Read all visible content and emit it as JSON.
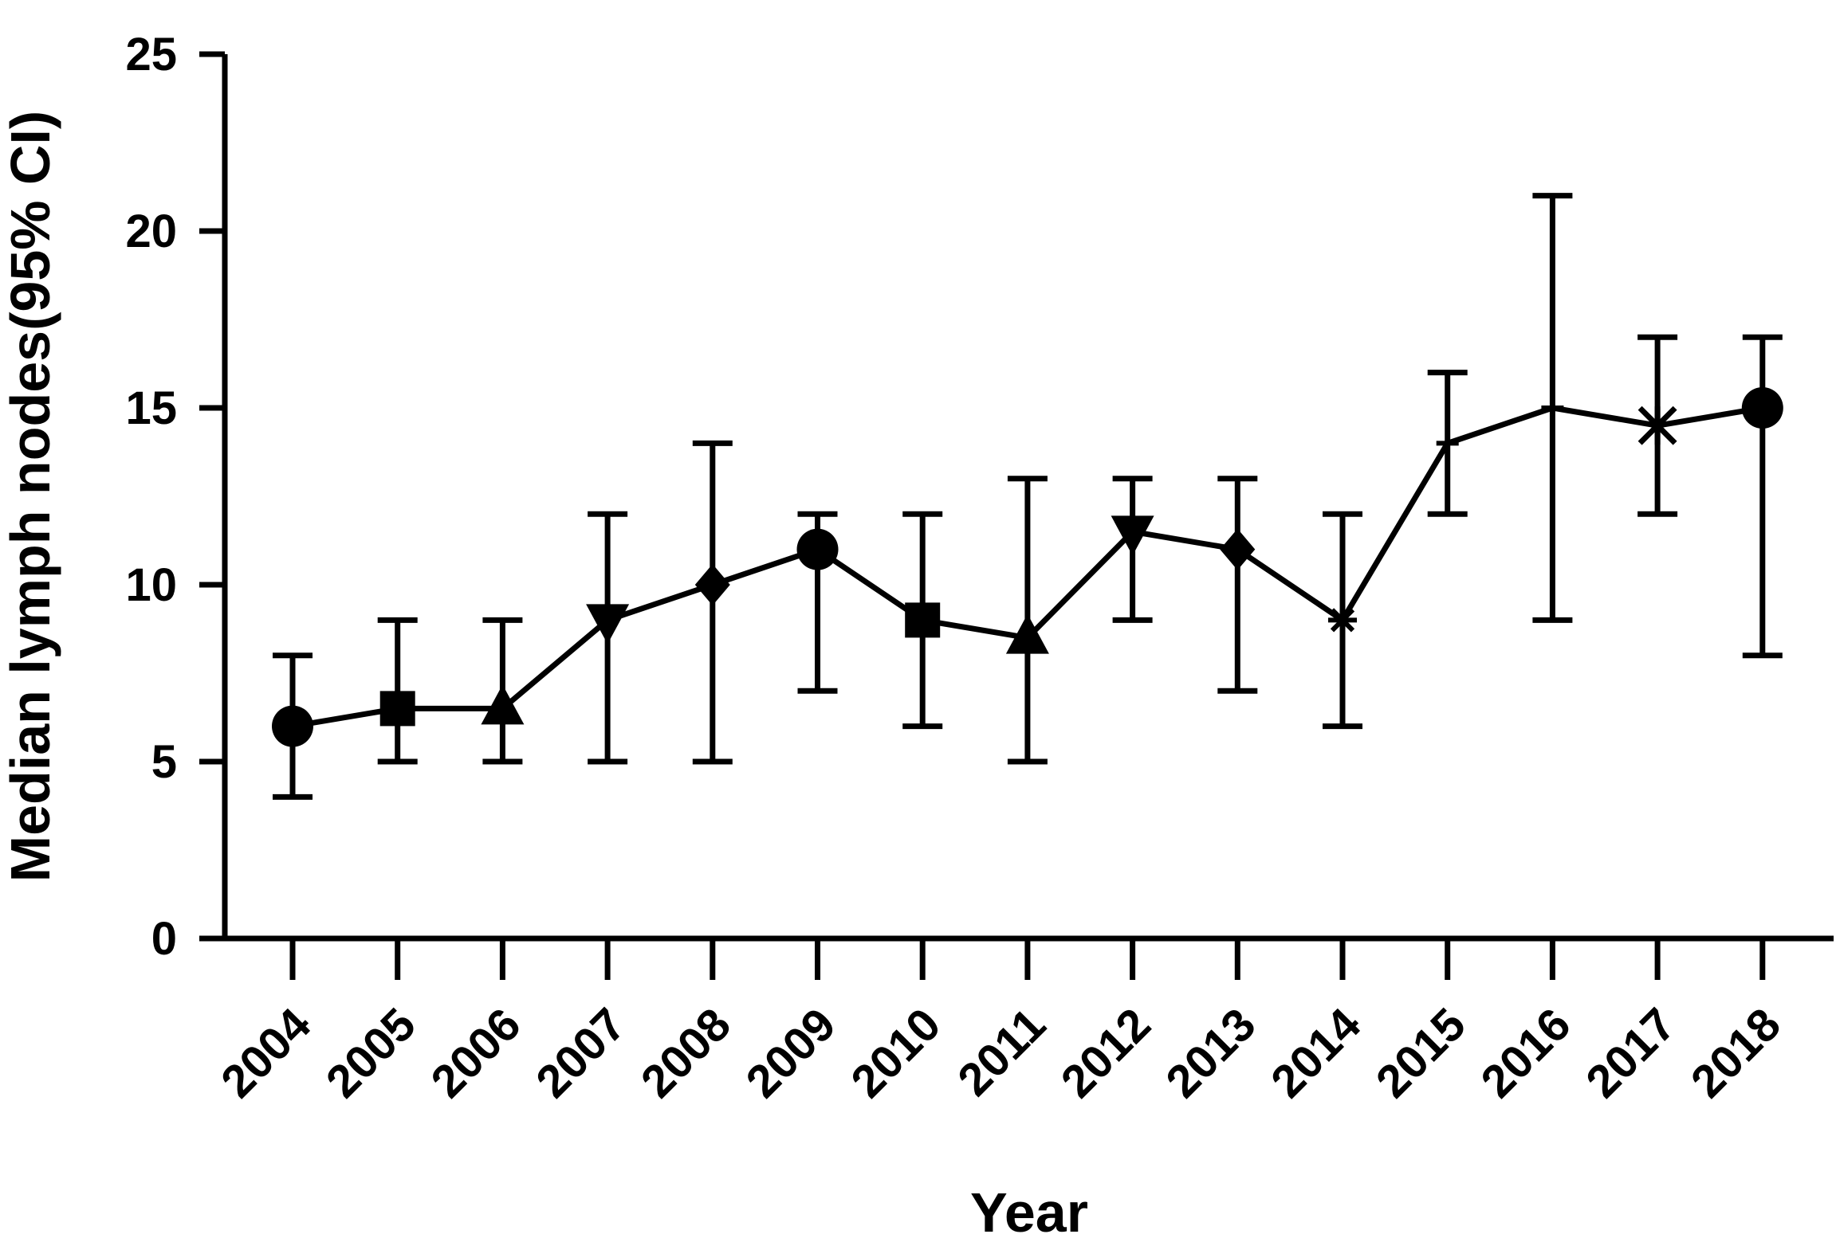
{
  "chart_data": {
    "type": "line",
    "title": "",
    "xlabel": "Year",
    "ylabel": "Median lymph nodes(95% CI)",
    "ylim": [
      0,
      25
    ],
    "yticks": [
      "0",
      "5",
      "10",
      "15",
      "20",
      "25"
    ],
    "categories": [
      "2004",
      "2005",
      "2006",
      "2007",
      "2008",
      "2009",
      "2010",
      "2011",
      "2012",
      "2013",
      "2014",
      "2015",
      "2016",
      "2017",
      "2018"
    ],
    "series": [
      {
        "values": [
          6,
          6.5,
          6.5,
          9,
          10,
          11,
          9,
          8.5,
          11.5,
          11,
          9,
          14,
          15,
          14.5,
          15
        ],
        "ci_lower": [
          4,
          5,
          5,
          5,
          5,
          7,
          6,
          5,
          9,
          7,
          6,
          12,
          9,
          12,
          8
        ],
        "ci_upper": [
          8,
          9,
          9,
          12,
          14,
          12,
          12,
          13,
          13,
          13,
          12,
          16,
          21,
          17,
          17
        ],
        "markers": [
          "circle",
          "square",
          "triangle-up",
          "triangle-down",
          "diamond",
          "circle",
          "square",
          "triangle-up",
          "triangle-down",
          "diamond",
          "asterisk",
          "plus",
          "plus",
          "x-star",
          "circle"
        ]
      }
    ],
    "grid": false,
    "legend": "none",
    "color": "#000000"
  }
}
